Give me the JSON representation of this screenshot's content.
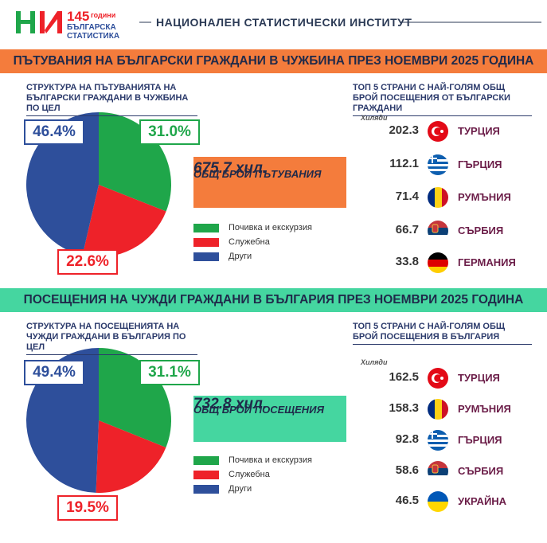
{
  "header": {
    "logo_number": "145",
    "logo_word": "години",
    "logo_line1": "БЪЛГАРСКА",
    "logo_line2": "СТАТИСТИКА",
    "institute": "НАЦИОНАЛЕН СТАТИСТИЧЕСКИ ИНСТИТУТ"
  },
  "chart_data": [
    {
      "type": "pie",
      "title": "СТРУКТУРА НА ПЪТУВАНИЯТА НА БЪЛГАРСКИ ГРАЖДАНИ В ЧУЖБИНА ПО ЦЕЛ",
      "categories": [
        "Почивка и екскурзия",
        "Служебна",
        "Други"
      ],
      "values": [
        31.0,
        22.6,
        46.4
      ],
      "value_labels": [
        "31.0%",
        "22.6%",
        "46.4%"
      ],
      "colors": [
        "#1fa64a",
        "#ee2229",
        "#2e4f9b"
      ]
    },
    {
      "type": "pie",
      "title": "СТРУКТУРА НА ПОСЕЩЕНИЯТА НА ЧУЖДИ ГРАЖДАНИ В БЪЛГАРИЯ ПО ЦЕЛ",
      "categories": [
        "Почивка и екскурзия",
        "Служебна",
        "Други"
      ],
      "values": [
        31.1,
        19.5,
        49.4
      ],
      "value_labels": [
        "31.1%",
        "19.5%",
        "49.4%"
      ],
      "colors": [
        "#1fa64a",
        "#ee2229",
        "#2e4f9b"
      ]
    }
  ],
  "sections": [
    {
      "banner": "ПЪТУВАНИЯ НА БЪЛГАРСКИ ГРАЖДАНИ В ЧУЖБИНА ПРЕЗ НОЕМВРИ 2025 ГОДИНА",
      "total": {
        "label": "ОБЩ БРОЙ ПЪТУВАНИЯ",
        "value": 675.7,
        "unit": "хил."
      },
      "top5": {
        "title": "ТОП 5 СТРАНИ С НАЙ-ГОЛЯМ ОБЩ БРОЙ ПОСЕЩЕНИЯ ОТ БЪЛГАРСКИ ГРАЖДАНИ",
        "unit": "Хиляди",
        "rows": [
          {
            "value": 202.3,
            "country": "ТУРЦИЯ"
          },
          {
            "value": 112.1,
            "country": "ГЪРЦИЯ"
          },
          {
            "value": 71.4,
            "country": "РУМЪНИЯ"
          },
          {
            "value": 66.7,
            "country": "СЪРБИЯ"
          },
          {
            "value": 33.8,
            "country": "ГЕРМАНИЯ"
          }
        ]
      }
    },
    {
      "banner": "ПОСЕЩЕНИЯ НА ЧУЖДИ ГРАЖДАНИ В БЪЛГАРИЯ ПРЕЗ НОЕМВРИ 2025 ГОДИНА",
      "total": {
        "label": "ОБЩ БРОЙ ПОСЕЩЕНИЯ",
        "value": 732.8,
        "unit": "хил."
      },
      "top5": {
        "title": "ТОП 5 СТРАНИ С НАЙ-ГОЛЯМ ОБЩ БРОЙ ПОСЕЩЕНИЯ В БЪЛГАРИЯ",
        "unit": "Хиляди",
        "rows": [
          {
            "value": 162.5,
            "country": "ТУРЦИЯ"
          },
          {
            "value": 158.3,
            "country": "РУМЪНИЯ"
          },
          {
            "value": 92.8,
            "country": "ГЪРЦИЯ"
          },
          {
            "value": 58.6,
            "country": "СЪРБИЯ"
          },
          {
            "value": 46.5,
            "country": "УКРАЙНА"
          }
        ]
      }
    }
  ]
}
